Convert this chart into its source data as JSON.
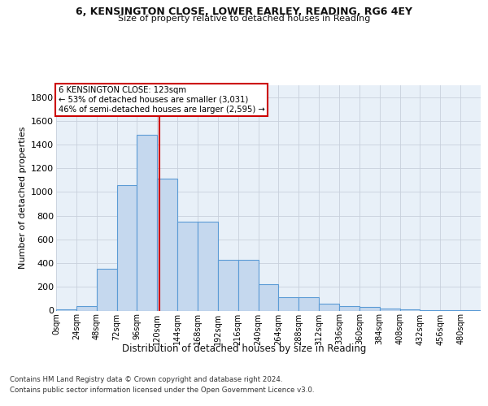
{
  "title1": "6, KENSINGTON CLOSE, LOWER EARLEY, READING, RG6 4EY",
  "title2": "Size of property relative to detached houses in Reading",
  "xlabel": "Distribution of detached houses by size in Reading",
  "ylabel": "Number of detached properties",
  "footer1": "Contains HM Land Registry data © Crown copyright and database right 2024.",
  "footer2": "Contains public sector information licensed under the Open Government Licence v3.0.",
  "bin_labels": [
    "0sqm",
    "24sqm",
    "48sqm",
    "72sqm",
    "96sqm",
    "120sqm",
    "144sqm",
    "168sqm",
    "192sqm",
    "216sqm",
    "240sqm",
    "264sqm",
    "288sqm",
    "312sqm",
    "336sqm",
    "360sqm",
    "384sqm",
    "408sqm",
    "432sqm",
    "456sqm",
    "480sqm"
  ],
  "bar_values": [
    10,
    35,
    350,
    1060,
    1480,
    1110,
    750,
    750,
    430,
    430,
    225,
    115,
    115,
    55,
    40,
    30,
    20,
    10,
    5,
    5,
    2
  ],
  "bar_color": "#c5d8ee",
  "bar_edgecolor": "#5b9bd5",
  "property_size": 123,
  "bin_width": 24,
  "annotation_line1": "6 KENSINGTON CLOSE: 123sqm",
  "annotation_line2": "← 53% of detached houses are smaller (3,031)",
  "annotation_line3": "46% of semi-detached houses are larger (2,595) →",
  "annotation_box_color": "#ffffff",
  "annotation_border_color": "#cc0000",
  "vline_color": "#cc0000",
  "ylim": [
    0,
    1900
  ],
  "yticks": [
    0,
    200,
    400,
    600,
    800,
    1000,
    1200,
    1400,
    1600,
    1800
  ],
  "background_color": "#e8f0f8",
  "plot_background": "#ffffff"
}
